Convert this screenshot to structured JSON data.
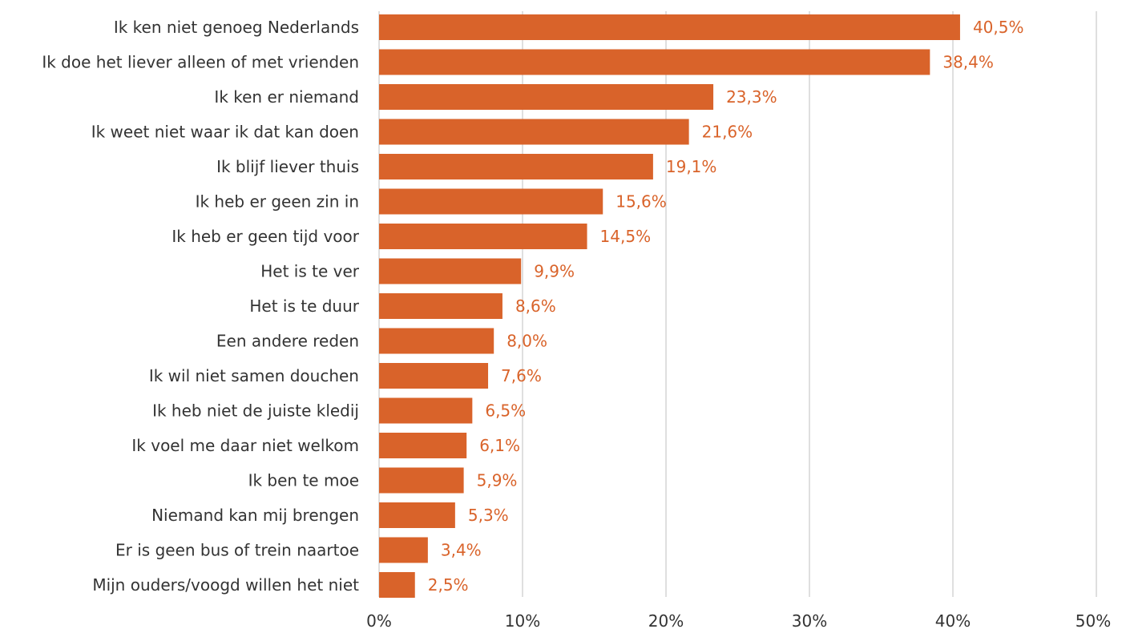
{
  "chart_data": {
    "type": "bar",
    "orientation": "horizontal",
    "categories": [
      "Ik ken niet genoeg Nederlands",
      "Ik doe het liever alleen of met vrienden",
      "Ik ken er niemand",
      "Ik weet niet waar ik dat kan doen",
      "Ik blijf liever thuis",
      "Ik heb er geen zin in",
      "Ik heb er geen tijd voor",
      "Het is te ver",
      "Het is te duur",
      "Een andere reden",
      "Ik wil niet samen douchen",
      "Ik heb niet de juiste kledij",
      "Ik voel me daar niet welkom",
      "Ik ben te moe",
      "Niemand kan mij brengen",
      "Er is geen bus of trein naartoe",
      "Mijn ouders/voogd willen het niet"
    ],
    "values": [
      40.5,
      38.4,
      23.3,
      21.6,
      19.1,
      15.6,
      14.5,
      9.9,
      8.6,
      8.0,
      7.6,
      6.5,
      6.1,
      5.9,
      5.3,
      3.4,
      2.5
    ],
    "value_labels": [
      "40,5%",
      "38,4%",
      "23,3%",
      "21,6%",
      "19,1%",
      "15,6%",
      "14,5%",
      "9,9%",
      "8,6%",
      "8,0%",
      "7,6%",
      "6,5%",
      "6,1%",
      "5,9%",
      "5,3%",
      "3,4%",
      "2,5%"
    ],
    "xlim": [
      0,
      50
    ],
    "ticks": [
      0,
      10,
      20,
      30,
      40,
      50
    ],
    "tick_labels": [
      "0%",
      "10%",
      "20%",
      "30%",
      "40%",
      "50%"
    ],
    "grid": true,
    "legend": "none",
    "bar_color": "#d9632a",
    "label_color": "#d9632a",
    "title": "",
    "xlabel": "",
    "ylabel": ""
  }
}
